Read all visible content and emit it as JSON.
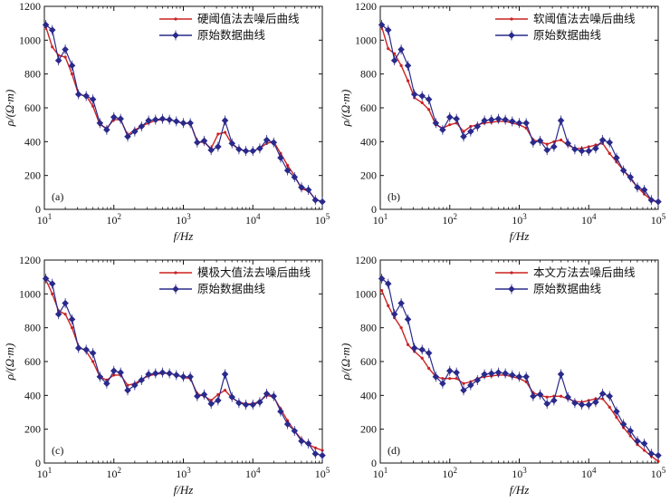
{
  "colors": {
    "denoised": "#cc2222",
    "original": "#2a2a8c",
    "axis": "#111111"
  },
  "chart_data": [
    {
      "type": "line",
      "panel_label": "(a)",
      "xlabel": "f/Hz",
      "ylabel": "ρ/(Ω·m)",
      "xscale": "log",
      "xlim": [
        10,
        100000
      ],
      "ylim": [
        0,
        1200
      ],
      "yticks": [
        0,
        200,
        400,
        600,
        800,
        1000,
        1200
      ],
      "xticks": [
        10,
        100,
        1000,
        10000,
        100000
      ],
      "xtick_labels": [
        {
          "base": "10",
          "exp": "1"
        },
        {
          "base": "10",
          "exp": "2"
        },
        {
          "base": "10",
          "exp": "3"
        },
        {
          "base": "10",
          "exp": "4"
        },
        {
          "base": "10",
          "exp": "5"
        }
      ],
      "legend_position": "top-right",
      "series": [
        {
          "name": "硬阈值法去噪后曲线",
          "color_key": "denoised",
          "marker": "dot",
          "x": [
            10.5,
            13,
            16,
            20,
            25,
            31,
            40,
            50,
            63,
            79,
            100,
            125,
            158,
            200,
            250,
            316,
            398,
            501,
            631,
            794,
            1000,
            1259,
            1585,
            1995,
            2512,
            3162,
            3981,
            5012,
            6310,
            7943,
            10000,
            12589,
            15849,
            19953,
            25119,
            31623,
            39811,
            50119,
            63096,
            79433,
            100000
          ],
          "y": [
            1080,
            960,
            910,
            900,
            800,
            680,
            670,
            610,
            500,
            480,
            530,
            530,
            440,
            470,
            490,
            510,
            525,
            530,
            530,
            520,
            505,
            510,
            400,
            395,
            360,
            445,
            455,
            385,
            355,
            345,
            345,
            360,
            390,
            400,
            330,
            260,
            200,
            120,
            110,
            60,
            45
          ]
        },
        {
          "name": "原始数据曲线",
          "color_key": "original",
          "marker": "diamond",
          "x": [
            10.5,
            13,
            16,
            20,
            25,
            31,
            40,
            50,
            63,
            79,
            100,
            125,
            158,
            200,
            250,
            316,
            398,
            501,
            631,
            794,
            1000,
            1259,
            1585,
            1995,
            2512,
            3162,
            3981,
            5012,
            6310,
            7943,
            10000,
            12589,
            15849,
            19953,
            25119,
            31623,
            39811,
            50119,
            63096,
            79433,
            100000
          ],
          "y": [
            1090,
            1060,
            880,
            945,
            850,
            680,
            670,
            650,
            510,
            470,
            545,
            535,
            430,
            460,
            490,
            525,
            530,
            535,
            530,
            520,
            510,
            510,
            395,
            405,
            350,
            370,
            525,
            390,
            355,
            345,
            345,
            360,
            410,
            395,
            305,
            230,
            190,
            130,
            115,
            55,
            45
          ]
        }
      ]
    },
    {
      "type": "line",
      "panel_label": "(b)",
      "xlabel": "f/Hz",
      "ylabel": "ρ/(Ω·m)",
      "xscale": "log",
      "xlim": [
        10,
        100000
      ],
      "ylim": [
        0,
        1200
      ],
      "yticks": [
        0,
        200,
        400,
        600,
        800,
        1000,
        1200
      ],
      "xticks": [
        10,
        100,
        1000,
        10000,
        100000
      ],
      "xtick_labels": [
        {
          "base": "10",
          "exp": "1"
        },
        {
          "base": "10",
          "exp": "2"
        },
        {
          "base": "10",
          "exp": "3"
        },
        {
          "base": "10",
          "exp": "4"
        },
        {
          "base": "10",
          "exp": "5"
        }
      ],
      "legend_position": "top-right",
      "series": [
        {
          "name": "软阈值法去噪后曲线",
          "color_key": "denoised",
          "marker": "dot",
          "x": [
            10.5,
            13,
            16,
            20,
            25,
            31,
            40,
            50,
            63,
            79,
            100,
            125,
            158,
            200,
            250,
            316,
            398,
            501,
            631,
            794,
            1000,
            1259,
            1585,
            1995,
            2512,
            3162,
            3981,
            5012,
            6310,
            7943,
            10000,
            12589,
            15849,
            19953,
            25119,
            31623,
            39811,
            50119,
            63096,
            79433,
            100000
          ],
          "y": [
            1080,
            950,
            920,
            850,
            760,
            660,
            630,
            590,
            500,
            480,
            500,
            510,
            460,
            490,
            500,
            510,
            515,
            520,
            520,
            510,
            500,
            480,
            410,
            400,
            385,
            400,
            410,
            380,
            360,
            360,
            370,
            380,
            390,
            330,
            280,
            230,
            180,
            130,
            90,
            55,
            40
          ]
        },
        {
          "name": "原始数据曲线",
          "color_key": "original",
          "marker": "diamond",
          "x": [
            10.5,
            13,
            16,
            20,
            25,
            31,
            40,
            50,
            63,
            79,
            100,
            125,
            158,
            200,
            250,
            316,
            398,
            501,
            631,
            794,
            1000,
            1259,
            1585,
            1995,
            2512,
            3162,
            3981,
            5012,
            6310,
            7943,
            10000,
            12589,
            15849,
            19953,
            25119,
            31623,
            39811,
            50119,
            63096,
            79433,
            100000
          ],
          "y": [
            1090,
            1060,
            880,
            945,
            850,
            680,
            670,
            650,
            510,
            470,
            545,
            535,
            430,
            460,
            490,
            525,
            530,
            535,
            530,
            520,
            510,
            510,
            395,
            405,
            350,
            370,
            525,
            390,
            355,
            345,
            345,
            360,
            410,
            395,
            305,
            230,
            190,
            130,
            115,
            55,
            45
          ]
        }
      ]
    },
    {
      "type": "line",
      "panel_label": "(c)",
      "xlabel": "f/Hz",
      "ylabel": "ρ/(Ω·m)",
      "xscale": "log",
      "xlim": [
        10,
        100000
      ],
      "ylim": [
        0,
        1200
      ],
      "yticks": [
        0,
        200,
        400,
        600,
        800,
        1000,
        1200
      ],
      "xticks": [
        10,
        100,
        1000,
        10000,
        100000
      ],
      "xtick_labels": [
        {
          "base": "10",
          "exp": "1"
        },
        {
          "base": "10",
          "exp": "2"
        },
        {
          "base": "10",
          "exp": "3"
        },
        {
          "base": "10",
          "exp": "4"
        },
        {
          "base": "10",
          "exp": "5"
        }
      ],
      "legend_position": "top-right",
      "series": [
        {
          "name": "模极大值法去噪后曲线",
          "color_key": "denoised",
          "marker": "dot",
          "x": [
            10.5,
            13,
            16,
            20,
            25,
            31,
            40,
            50,
            63,
            79,
            100,
            125,
            158,
            200,
            250,
            316,
            398,
            501,
            631,
            794,
            1000,
            1259,
            1585,
            1995,
            2512,
            3162,
            3981,
            5012,
            6310,
            7943,
            10000,
            12589,
            15849,
            19953,
            25119,
            31623,
            39811,
            50119,
            63096,
            79433,
            100000
          ],
          "y": [
            1085,
            1000,
            900,
            880,
            800,
            690,
            660,
            600,
            510,
            490,
            520,
            520,
            460,
            470,
            495,
            515,
            525,
            530,
            530,
            520,
            505,
            500,
            410,
            395,
            370,
            405,
            430,
            385,
            360,
            350,
            350,
            365,
            400,
            390,
            320,
            250,
            190,
            140,
            110,
            90,
            75
          ]
        },
        {
          "name": "原始数据曲线",
          "color_key": "original",
          "marker": "diamond",
          "x": [
            10.5,
            13,
            16,
            20,
            25,
            31,
            40,
            50,
            63,
            79,
            100,
            125,
            158,
            200,
            250,
            316,
            398,
            501,
            631,
            794,
            1000,
            1259,
            1585,
            1995,
            2512,
            3162,
            3981,
            5012,
            6310,
            7943,
            10000,
            12589,
            15849,
            19953,
            25119,
            31623,
            39811,
            50119,
            63096,
            79433,
            100000
          ],
          "y": [
            1090,
            1060,
            880,
            945,
            850,
            680,
            670,
            650,
            510,
            470,
            545,
            535,
            430,
            460,
            490,
            525,
            530,
            535,
            530,
            520,
            510,
            510,
            395,
            405,
            350,
            370,
            525,
            390,
            355,
            345,
            345,
            360,
            410,
            395,
            305,
            230,
            190,
            130,
            115,
            55,
            45
          ]
        }
      ]
    },
    {
      "type": "line",
      "panel_label": "(d)",
      "xlabel": "f/Hz",
      "ylabel": "ρ/(Ω·m)",
      "xscale": "log",
      "xlim": [
        10,
        100000
      ],
      "ylim": [
        0,
        1200
      ],
      "yticks": [
        0,
        200,
        400,
        600,
        800,
        1000,
        1200
      ],
      "xticks": [
        10,
        100,
        1000,
        10000,
        100000
      ],
      "xtick_labels": [
        {
          "base": "10",
          "exp": "1"
        },
        {
          "base": "10",
          "exp": "2"
        },
        {
          "base": "10",
          "exp": "3"
        },
        {
          "base": "10",
          "exp": "4"
        },
        {
          "base": "10",
          "exp": "5"
        }
      ],
      "legend_position": "top-right",
      "series": [
        {
          "name": "本文方法去噪后曲线",
          "color_key": "denoised",
          "marker": "dot",
          "x": [
            10.5,
            13,
            16,
            20,
            25,
            31,
            40,
            50,
            63,
            79,
            100,
            125,
            158,
            200,
            250,
            316,
            398,
            501,
            631,
            794,
            1000,
            1259,
            1585,
            1995,
            2512,
            3162,
            3981,
            5012,
            6310,
            7943,
            10000,
            12589,
            15849,
            19953,
            25119,
            31623,
            39811,
            50119,
            63096,
            79433,
            100000
          ],
          "y": [
            1020,
            930,
            860,
            800,
            700,
            660,
            620,
            560,
            510,
            500,
            500,
            500,
            470,
            480,
            500,
            510,
            515,
            520,
            520,
            510,
            500,
            480,
            415,
            400,
            390,
            395,
            395,
            380,
            365,
            360,
            370,
            380,
            380,
            330,
            270,
            210,
            160,
            110,
            75,
            40,
            10
          ]
        },
        {
          "name": "原始数据曲线",
          "color_key": "original",
          "marker": "diamond",
          "x": [
            10.5,
            13,
            16,
            20,
            25,
            31,
            40,
            50,
            63,
            79,
            100,
            125,
            158,
            200,
            250,
            316,
            398,
            501,
            631,
            794,
            1000,
            1259,
            1585,
            1995,
            2512,
            3162,
            3981,
            5012,
            6310,
            7943,
            10000,
            12589,
            15849,
            19953,
            25119,
            31623,
            39811,
            50119,
            63096,
            79433,
            100000
          ],
          "y": [
            1090,
            1060,
            880,
            945,
            850,
            680,
            670,
            650,
            510,
            470,
            545,
            535,
            430,
            460,
            490,
            525,
            530,
            535,
            530,
            520,
            510,
            510,
            395,
            405,
            350,
            370,
            525,
            390,
            355,
            345,
            345,
            360,
            410,
            395,
            305,
            230,
            190,
            130,
            115,
            55,
            45
          ]
        }
      ]
    }
  ]
}
